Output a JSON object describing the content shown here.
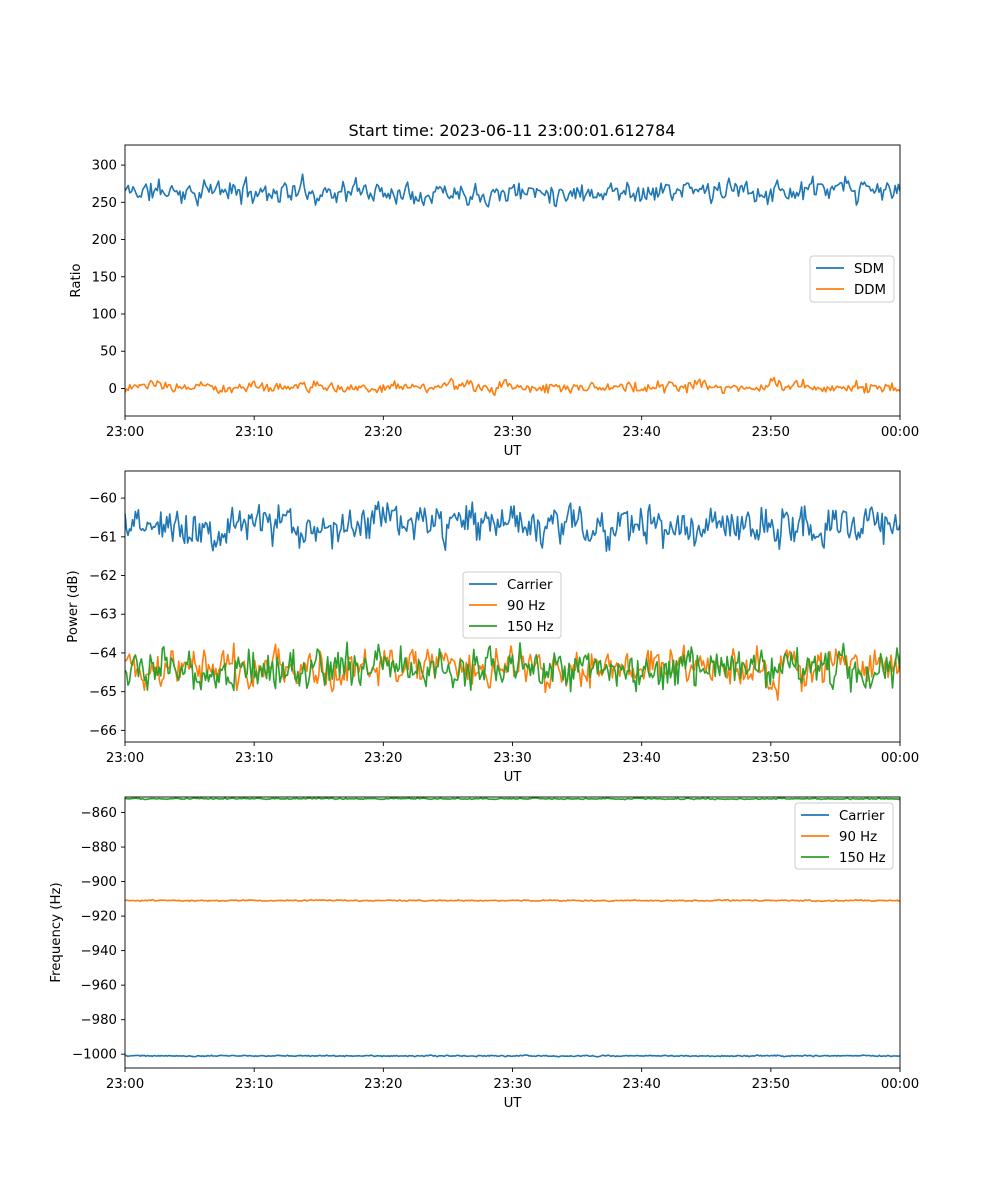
{
  "figure": {
    "title": "Start time: 2023-06-11 23:00:01.612784"
  },
  "colors": {
    "c0": "#1f77b4",
    "c1": "#ff7f0e",
    "c2": "#2ca02c"
  },
  "chart_data": [
    {
      "type": "line",
      "title": "Start time: 2023-06-11 23:00:01.612784",
      "xlabel": "UT",
      "ylabel": "Ratio",
      "x_ticks": [
        "23:00",
        "23:10",
        "23:20",
        "23:30",
        "23:40",
        "23:50",
        "00:00"
      ],
      "x_unit": "minutes after 23:00",
      "xlim": [
        0,
        60
      ],
      "y_ticks": [
        0,
        50,
        100,
        150,
        200,
        250,
        300
      ],
      "ylim": [
        -37,
        327
      ],
      "legend": {
        "placement": "center-right",
        "entries": [
          "SDM",
          "DDM"
        ]
      },
      "grid": false,
      "series": [
        {
          "name": "SDM",
          "color_key": "c0",
          "mean": 265,
          "noise": 14,
          "seed": 11,
          "points": 480
        },
        {
          "name": "DDM",
          "color_key": "c1",
          "mean": 2,
          "noise": 7,
          "seed": 23,
          "points": 480
        }
      ]
    },
    {
      "type": "line",
      "xlabel": "UT",
      "ylabel": "Power (dB)",
      "x_ticks": [
        "23:00",
        "23:10",
        "23:20",
        "23:30",
        "23:40",
        "23:50",
        "00:00"
      ],
      "xlim": [
        0,
        60
      ],
      "y_ticks": [
        -60,
        -61,
        -62,
        -63,
        -64,
        -65,
        -66
      ],
      "ylim": [
        -66.3,
        -59.3
      ],
      "legend": {
        "placement": "center",
        "entries": [
          "Carrier",
          "90 Hz",
          "150 Hz"
        ]
      },
      "grid": false,
      "series": [
        {
          "name": "Carrier",
          "color_key": "c0",
          "mean": -60.7,
          "noise": 0.45,
          "seed": 37,
          "points": 520
        },
        {
          "name": "90 Hz",
          "color_key": "c1",
          "mean": -64.4,
          "noise": 0.45,
          "seed": 41,
          "points": 520
        },
        {
          "name": "150 Hz",
          "color_key": "c2",
          "mean": -64.4,
          "noise": 0.45,
          "seed": 53,
          "points": 520
        }
      ]
    },
    {
      "type": "line",
      "xlabel": "UT",
      "ylabel": "Frequency (Hz)",
      "x_ticks": [
        "23:00",
        "23:10",
        "23:20",
        "23:30",
        "23:40",
        "23:50",
        "00:00"
      ],
      "xlim": [
        0,
        60
      ],
      "y_ticks": [
        -860,
        -880,
        -900,
        -920,
        -940,
        -960,
        -980,
        -1000
      ],
      "ylim": [
        -1008,
        -851
      ],
      "legend": {
        "placement": "upper-right",
        "entries": [
          "Carrier",
          "90 Hz",
          "150 Hz"
        ]
      },
      "grid": false,
      "series": [
        {
          "name": "Carrier",
          "color_key": "c0",
          "mean": -1001,
          "noise": 0.35,
          "seed": 61,
          "points": 600
        },
        {
          "name": "90 Hz",
          "color_key": "c1",
          "mean": -911,
          "noise": 0.35,
          "seed": 67,
          "points": 600
        },
        {
          "name": "150 Hz",
          "color_key": "c2",
          "mean": -852,
          "noise": 0.35,
          "seed": 71,
          "points": 600
        }
      ]
    }
  ]
}
